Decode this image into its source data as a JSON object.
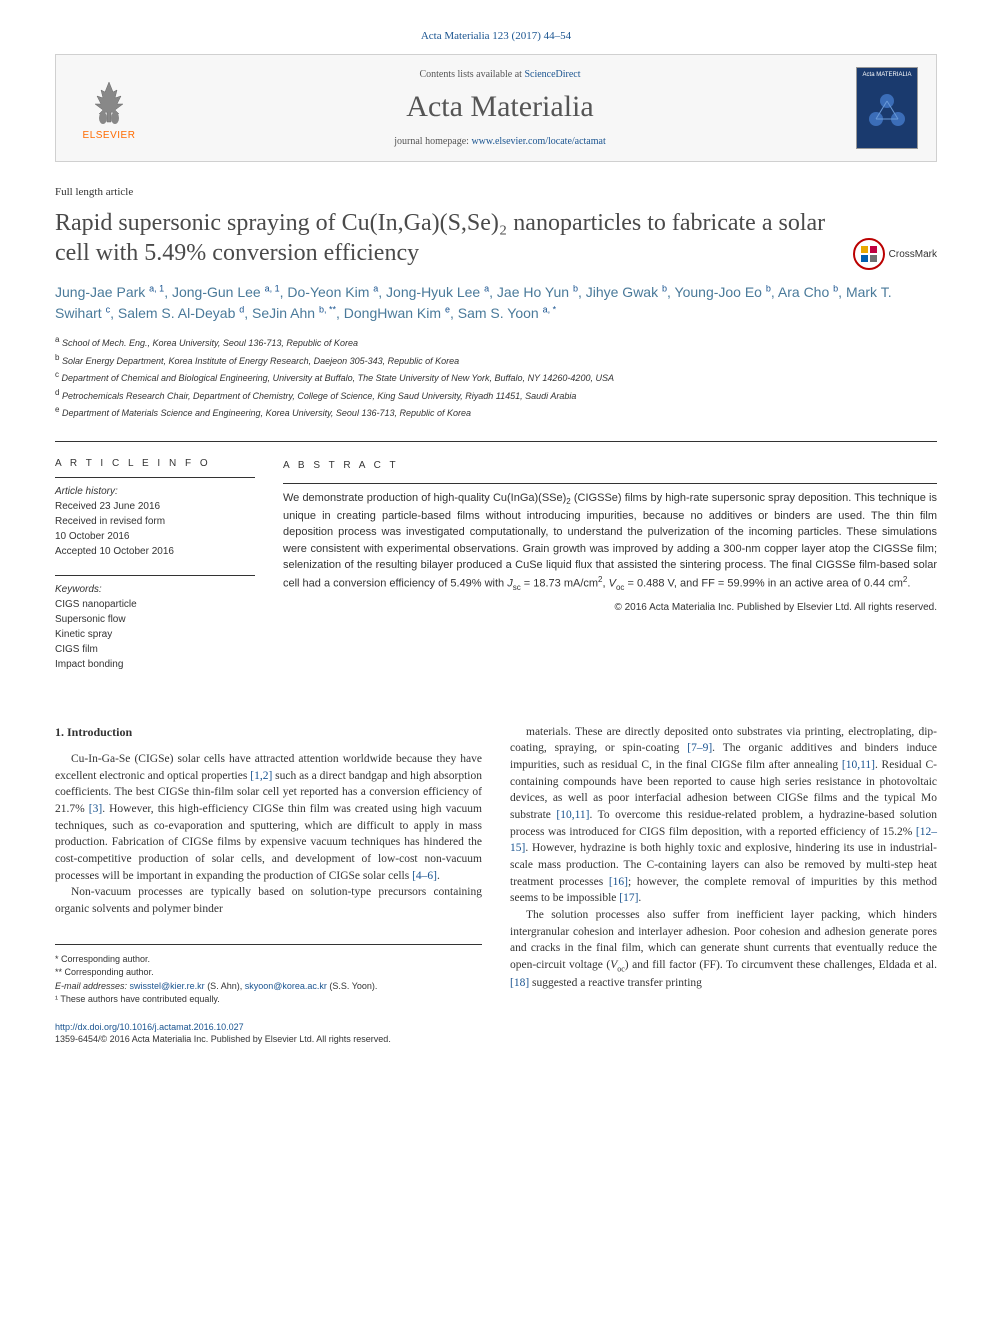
{
  "citation": "Acta Materialia 123 (2017) 44–54",
  "header": {
    "contents_prefix": "Contents lists available at ",
    "contents_link": "ScienceDirect",
    "journal_name": "Acta Materialia",
    "homepage_prefix": "journal homepage: ",
    "homepage_url": "www.elsevier.com/locate/actamat",
    "publisher": "ELSEVIER",
    "cover_title": "Acta MATERIALIA"
  },
  "article_type": "Full length article",
  "title": "Rapid supersonic spraying of Cu(In,Ga)(S,Se)₂ nanoparticles to fabricate a solar cell with 5.49% conversion efficiency",
  "crossmark_label": "CrossMark",
  "authors_html": "Jung-Jae Park <sup>a, 1</sup>, Jong-Gun Lee <sup>a, 1</sup>, Do-Yeon Kim <sup>a</sup>, Jong-Hyuk Lee <sup>a</sup>, Jae Ho Yun <sup>b</sup>, Jihye Gwak <sup>b</sup>, Young-Joo Eo <sup>b</sup>, Ara Cho <sup>b</sup>, Mark T. Swihart <sup>c</sup>, Salem S. Al-Deyab <sup>d</sup>, SeJin Ahn <sup>b, **</sup>, DongHwan Kim <sup>e</sup>, Sam S. Yoon <sup>a, *</sup>",
  "affiliations": [
    {
      "sup": "a",
      "text": "School of Mech. Eng., Korea University, Seoul 136-713, Republic of Korea"
    },
    {
      "sup": "b",
      "text": "Solar Energy Department, Korea Institute of Energy Research, Daejeon 305-343, Republic of Korea"
    },
    {
      "sup": "c",
      "text": "Department of Chemical and Biological Engineering, University at Buffalo, The State University of New York, Buffalo, NY 14260-4200, USA"
    },
    {
      "sup": "d",
      "text": "Petrochemicals Research Chair, Department of Chemistry, College of Science, King Saud University, Riyadh 11451, Saudi Arabia"
    },
    {
      "sup": "e",
      "text": "Department of Materials Science and Engineering, Korea University, Seoul 136-713, Republic of Korea"
    }
  ],
  "article_info": {
    "heading": "A R T I C L E   I N F O",
    "history_label": "Article history:",
    "history": [
      "Received 23 June 2016",
      "Received in revised form",
      "10 October 2016",
      "Accepted 10 October 2016"
    ],
    "keywords_label": "Keywords:",
    "keywords": [
      "CIGS nanoparticle",
      "Supersonic flow",
      "Kinetic spray",
      "CIGS film",
      "Impact bonding"
    ]
  },
  "abstract": {
    "heading": "A B S T R A C T",
    "text": "We demonstrate production of high-quality Cu(InGa)(SSe)₂ (CIGSSe) films by high-rate supersonic spray deposition. This technique is unique in creating particle-based films without introducing impurities, because no additives or binders are used. The thin film deposition process was investigated computationally, to understand the pulverization of the incoming particles. These simulations were consistent with experimental observations. Grain growth was improved by adding a 300-nm copper layer atop the CIGSSe film; selenization of the resulting bilayer produced a CuSe liquid flux that assisted the sintering process. The final CIGSSe film-based solar cell had a conversion efficiency of 5.49% with Jsc = 18.73 mA/cm², Voc = 0.488 V, and FF = 59.99% in an active area of 0.44 cm².",
    "copyright": "© 2016 Acta Materialia Inc. Published by Elsevier Ltd. All rights reserved."
  },
  "section1": {
    "heading": "1. Introduction",
    "p1": "Cu-In-Ga-Se (CIGSe) solar cells have attracted attention worldwide because they have excellent electronic and optical properties [1,2] such as a direct bandgap and high absorption coefficients. The best CIGSe thin-film solar cell yet reported has a conversion efficiency of 21.7% [3]. However, this high-efficiency CIGSe thin film was created using high vacuum techniques, such as co-evaporation and sputtering, which are difficult to apply in mass production. Fabrication of CIGSe films by expensive vacuum techniques has hindered the cost-competitive production of solar cells, and development of low-cost non-vacuum processes will be important in expanding the production of CIGSe solar cells [4–6].",
    "p2": "Non-vacuum processes are typically based on solution-type precursors containing organic solvents and polymer binder",
    "p3": "materials. These are directly deposited onto substrates via printing, electroplating, dip-coating, spraying, or spin-coating [7–9]. The organic additives and binders induce impurities, such as residual C, in the final CIGSe film after annealing [10,11]. Residual C-containing compounds have been reported to cause high series resistance in photovoltaic devices, as well as poor interfacial adhesion between CIGSe films and the typical Mo substrate [10,11]. To overcome this residue-related problem, a hydrazine-based solution process was introduced for CIGS film deposition, with a reported efficiency of 15.2% [12–15]. However, hydrazine is both highly toxic and explosive, hindering its use in industrial-scale mass production. The C-containing layers can also be removed by multi-step heat treatment processes [16]; however, the complete removal of impurities by this method seems to be impossible [17].",
    "p4": "The solution processes also suffer from inefficient layer packing, which hinders intergranular cohesion and interlayer adhesion. Poor cohesion and adhesion generate pores and cracks in the final film, which can generate shunt currents that eventually reduce the open-circuit voltage (Voc) and fill factor (FF). To circumvent these challenges, Eldada et al. [18] suggested a reactive transfer printing"
  },
  "footer": {
    "corr1": "* Corresponding author.",
    "corr2": "** Corresponding author.",
    "email_label": "E-mail addresses: ",
    "email1": "swisstel@kier.re.kr",
    "email1_who": " (S. Ahn), ",
    "email2": "skyoon@korea.ac.kr",
    "email2_who": " (S.S. Yoon).",
    "note1": "¹ These authors have contributed equally."
  },
  "doi": {
    "url": "http://dx.doi.org/10.1016/j.actamat.2016.10.027",
    "line2": "1359-6454/© 2016 Acta Materialia Inc. Published by Elsevier Ltd. All rights reserved."
  },
  "colors": {
    "link": "#1a5490",
    "elsevier_orange": "#ff6b00",
    "heading_gray": "#4a4a4a",
    "author_blue": "#4a7a9a",
    "cover_bg": "#1a3a6e",
    "crossmark_red": "#b00"
  }
}
